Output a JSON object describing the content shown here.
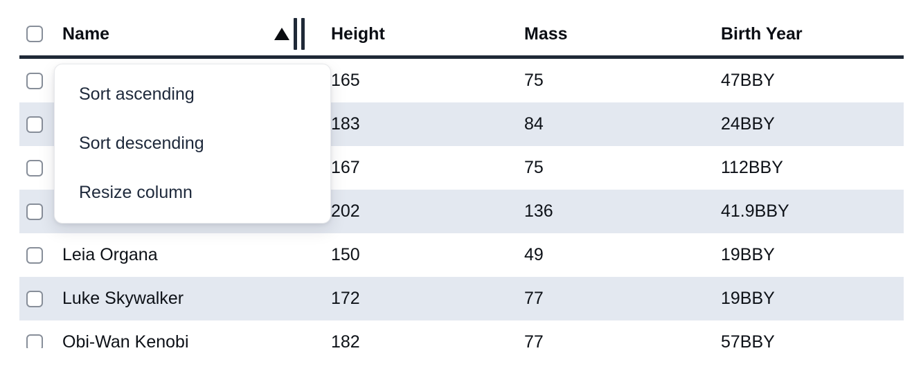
{
  "table": {
    "columns": [
      {
        "key": "name",
        "label": "Name",
        "sort": "ascending"
      },
      {
        "key": "height",
        "label": "Height"
      },
      {
        "key": "mass",
        "label": "Mass"
      },
      {
        "key": "birth_year",
        "label": "Birth Year"
      }
    ],
    "rows": [
      {
        "name": "",
        "height": "165",
        "mass": "75",
        "birth_year": "47BBY"
      },
      {
        "name": "",
        "height": "183",
        "mass": "84",
        "birth_year": "24BBY"
      },
      {
        "name": "",
        "height": "167",
        "mass": "75",
        "birth_year": "112BBY"
      },
      {
        "name": "",
        "height": "202",
        "mass": "136",
        "birth_year": "41.9BBY"
      },
      {
        "name": "Leia Organa",
        "height": "150",
        "mass": "49",
        "birth_year": "19BBY"
      },
      {
        "name": "Luke Skywalker",
        "height": "172",
        "mass": "77",
        "birth_year": "19BBY"
      },
      {
        "name": "Obi-Wan Kenobi",
        "height": "182",
        "mass": "77",
        "birth_year": "57BBY"
      }
    ]
  },
  "context_menu": {
    "items": [
      "Sort ascending",
      "Sort descending",
      "Resize column"
    ]
  },
  "icons": {
    "sort_ascending": "triangle-up",
    "column_resize": "double-vertical-bars"
  },
  "colors": {
    "header_border": "#1f2937",
    "row_stripe": "#e3e8f0",
    "menu_text": "#1e293b",
    "cell_text": "#0d1117",
    "checkbox_border": "#878e99",
    "sort_icon": "#0a0c10"
  }
}
